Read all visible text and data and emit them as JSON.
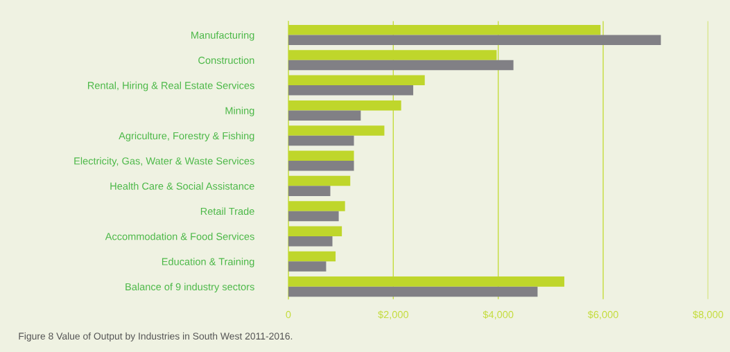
{
  "chart_data": {
    "type": "bar",
    "orientation": "horizontal",
    "categories": [
      "Manufacturing",
      "Construction",
      "Rental, Hiring & Real Estate Services",
      "Mining",
      "Agriculture, Forestry & Fishing",
      "Electricity, Gas, Water & Waste Services",
      "Health Care & Social Assistance",
      "Retail Trade",
      "Accommodation & Food Services",
      "Education & Training",
      "Balance of 9 industry sectors"
    ],
    "series": [
      {
        "color": "#bfd62b",
        "values": [
          5950,
          3970,
          2600,
          2150,
          1830,
          1250,
          1180,
          1080,
          1020,
          900,
          5260
        ]
      },
      {
        "color": "#818085",
        "values": [
          7100,
          4290,
          2380,
          1380,
          1250,
          1250,
          800,
          960,
          840,
          720,
          4750
        ]
      }
    ],
    "xlim": [
      0,
      8000
    ],
    "xticks": [
      {
        "value": 0,
        "label": "0"
      },
      {
        "value": 2000,
        "label": "$2,000"
      },
      {
        "value": 4000,
        "label": "$4,000"
      },
      {
        "value": 6000,
        "label": "$6,000"
      },
      {
        "value": 8000,
        "label": "$8,000"
      }
    ],
    "grid": "x",
    "annotations": [
      "Figure 8 Value of Output by Industries in South West 2011-2016."
    ]
  }
}
